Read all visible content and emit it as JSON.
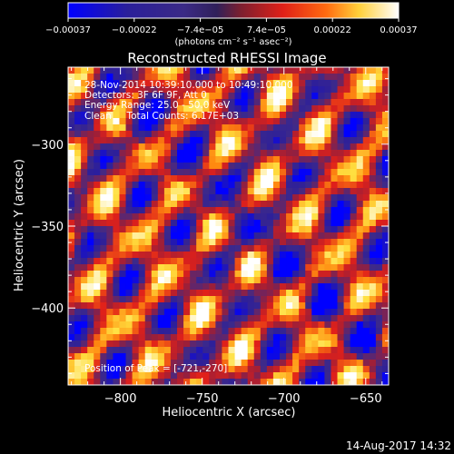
{
  "chart_data": {
    "type": "heatmap",
    "title": "Reconstructed RHESSI Image",
    "xlabel": "Heliocentric X (arcsec)",
    "ylabel": "Heliocentric Y (arcsec)",
    "xlim": [
      -832,
      -636
    ],
    "ylim": [
      -447,
      -253
    ],
    "x_ticks": [
      -800,
      -750,
      -700,
      -650
    ],
    "y_ticks": [
      -300,
      -350,
      -400
    ],
    "x_tick_labels": [
      "−800",
      "−750",
      "−700",
      "−650"
    ],
    "y_tick_labels": [
      "−300",
      "−350",
      "−400"
    ],
    "colorbar": {
      "min": -0.00037,
      "max": 0.00037,
      "tick_labels": [
        "−0.00037",
        "−0.00022",
        "−7.4e−05",
        "7.4e−05",
        "0.00022",
        "0.00037"
      ],
      "unit_label": "(photons cm⁻² s⁻¹ asec⁻²)"
    },
    "annotations": [
      "28-Nov-2014 10:39:10.000 to 10:49:10.000",
      "Detectors: 3F 6F 9F, Att 0",
      "Energy Range: 25.0 - 50.0 keV",
      "Clean     Total Counts: 6.17E+03"
    ],
    "peak_label": "Position of Peak = [-721,-270]",
    "footer_timestamp": "14-Aug-2017 14:32",
    "colors": {
      "background": "#000000",
      "text": "#ffffff",
      "colormap": [
        "#0000ff",
        "#2d1f9a",
        "#3d2a8a",
        "#9a1f3a",
        "#e0201a",
        "#ff8a10",
        "#ffe040",
        "#ffffff"
      ]
    }
  }
}
